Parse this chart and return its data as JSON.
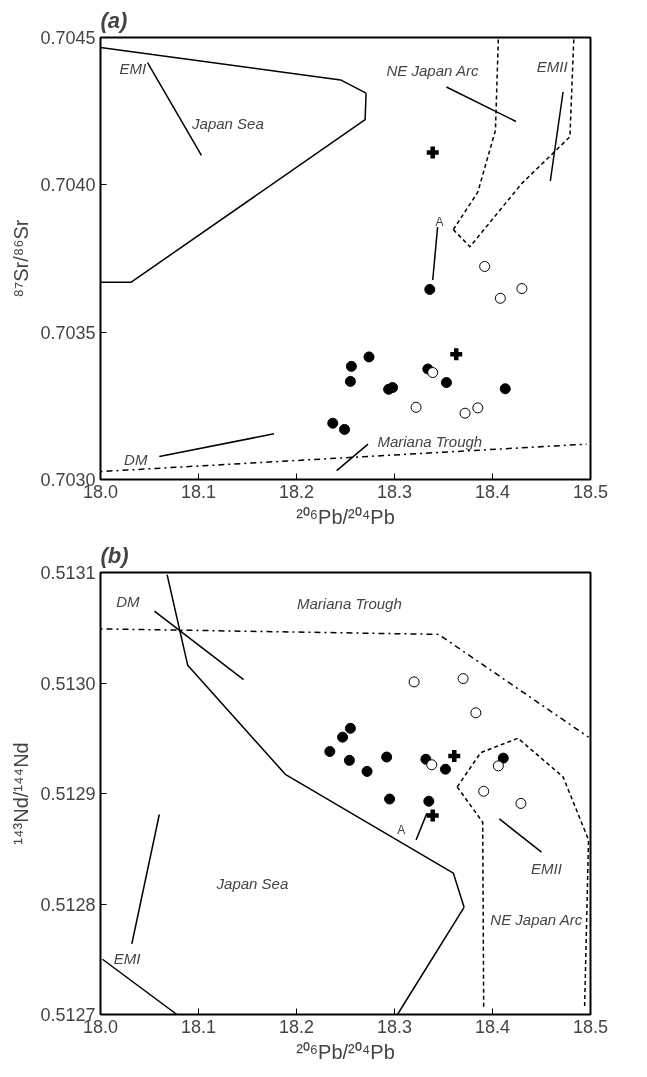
{
  "chart_data": [
    {
      "type": "scatter",
      "title": "(a)",
      "xlabel": "²⁰⁶Pb/²⁰⁴Pb",
      "ylabel": "⁸⁷Sr/⁸⁶Sr",
      "grid": false,
      "xlim": [
        18.0,
        18.5
      ],
      "ylim": [
        0.703,
        0.7045
      ],
      "xticks": [
        {
          "value": 18.0,
          "label": "18.0"
        },
        18.1,
        18.2,
        18.3,
        18.4,
        18.5
      ],
      "yticks": [
        {
          "value": 0.703,
          "label": "0.7030"
        },
        0.7035,
        {
          "value": 0.704,
          "label": "0.7040"
        },
        0.7045
      ],
      "series": [
        {
          "type": "line",
          "line_style": "solid",
          "color": "#000000",
          "x": [
            18.0,
            18.245,
            18.271
          ],
          "values": [
            0.704466,
            0.704356,
            0.704311
          ]
        },
        {
          "type": "line",
          "line_style": "solid",
          "color": "#000000",
          "x": [
            18.0,
            18.031,
            18.27,
            18.271
          ],
          "values": [
            0.703669,
            0.703669,
            0.704221,
            0.704311
          ]
        },
        {
          "type": "line",
          "line_style": "dashed",
          "color": "#000000",
          "x": [
            18.36,
            18.385,
            18.403,
            18.406
          ],
          "values": [
            0.703848,
            0.703975,
            0.704185,
            0.7045
          ]
        },
        {
          "type": "line",
          "line_style": "dashed",
          "color": "#000000",
          "x": [
            18.36,
            18.377,
            18.43,
            18.479,
            18.483
          ],
          "values": [
            0.703848,
            0.70379,
            0.704005,
            0.704163,
            0.7045
          ]
        },
        {
          "type": "line",
          "line_style": "dotdash",
          "color": "#000000",
          "x": [
            18.0,
            18.496
          ],
          "values": [
            0.703027,
            0.70312
          ]
        },
        {
          "type": "line",
          "line_style": "solid",
          "color": "#000000",
          "x": [
            18.339,
            18.344
          ],
          "values": [
            0.703677,
            0.703857
          ]
        },
        {
          "type": "line",
          "line_style": "solid",
          "color": "#000000",
          "x": [
            18.353,
            18.424
          ],
          "values": [
            0.704332,
            0.704215
          ]
        },
        {
          "type": "line",
          "line_style": "solid",
          "color": "#000000",
          "x": [
            18.241,
            18.273
          ],
          "values": [
            0.70303,
            0.70312
          ]
        },
        {
          "type": "line",
          "line_style": "solid",
          "color": "#000000",
          "x": [
            18.048,
            18.103
          ],
          "values": [
            0.704415,
            0.7041
          ]
        },
        {
          "type": "line",
          "line_style": "solid",
          "color": "#000000",
          "x": [
            18.06,
            18.177
          ],
          "values": [
            0.703078,
            0.703155
          ]
        },
        {
          "type": "line",
          "line_style": "solid",
          "color": "#000000",
          "x": [
            18.459,
            18.472
          ],
          "values": [
            0.704013,
            0.704315
          ]
        },
        {
          "marker": "circle",
          "color": "#000000",
          "x": [
            18.336,
            18.256,
            18.255,
            18.274,
            18.294,
            18.298,
            18.334,
            18.353,
            18.413,
            18.237,
            18.249
          ],
          "values": [
            0.703645,
            0.703384,
            0.703333,
            0.703416,
            0.703306,
            0.703312,
            0.703375,
            0.703329,
            0.703308,
            0.703191,
            0.70317
          ]
        },
        {
          "marker": "circle",
          "color": "#ffffff",
          "x": [
            18.392,
            18.408,
            18.43,
            18.339,
            18.322,
            18.372,
            18.385
          ],
          "values": [
            0.703723,
            0.703615,
            0.703648,
            0.703363,
            0.703245,
            0.703225,
            0.703243
          ]
        },
        {
          "marker": "cross",
          "color": "#000000",
          "x": [
            18.339,
            18.363
          ],
          "values": [
            0.70411,
            0.703425
          ]
        }
      ],
      "annotations": [
        "EMI",
        "Japan Sea",
        "NE Japan Arc",
        "EMII",
        "A",
        "DM",
        "Mariana Trough"
      ]
    },
    {
      "type": "scatter",
      "title": "(b)",
      "xlabel": "²⁰⁶Pb/²⁰⁴Pb",
      "ylabel": "¹⁴³Nd/¹⁴⁴Nd",
      "grid": false,
      "xlim": [
        18.0,
        18.5
      ],
      "ylim": [
        0.5127,
        0.5131
      ],
      "xticks": [
        {
          "value": 18.0,
          "label": "18.0"
        },
        18.1,
        18.2,
        18.3,
        18.4,
        18.5
      ],
      "yticks": [
        0.5127,
        0.5128,
        0.5129,
        {
          "value": 0.513,
          "label": "0.5130"
        },
        0.5131
      ],
      "series": [
        {
          "type": "line",
          "line_style": "solid",
          "color": "#000000",
          "x": [
            18.068,
            18.089,
            18.189,
            18.36,
            18.371
          ],
          "values": [
            0.513098,
            0.513016,
            0.512917,
            0.512828,
            0.512797
          ]
        },
        {
          "type": "line",
          "line_style": "solid",
          "color": "#000000",
          "x": [
            18.303,
            18.371
          ],
          "values": [
            0.5127,
            0.512797
          ]
        },
        {
          "type": "line",
          "line_style": "solid",
          "color": "#000000",
          "x": [
            18.002,
            18.078
          ],
          "values": [
            0.51275,
            0.5127
          ]
        },
        {
          "type": "line",
          "line_style": "dotdash",
          "color": "#000000",
          "x": [
            18.0,
            18.345,
            18.498
          ],
          "values": [
            0.513049,
            0.513044,
            0.512951
          ]
        },
        {
          "type": "line",
          "line_style": "dashed",
          "color": "#000000",
          "x": [
            18.364,
            18.39,
            18.391
          ],
          "values": [
            0.512906,
            0.512874,
            0.512707
          ]
        },
        {
          "type": "line",
          "line_style": "dashed",
          "color": "#000000",
          "x": [
            18.364,
            18.388,
            18.426,
            18.472,
            18.498,
            18.494
          ],
          "values": [
            0.512906,
            0.512937,
            0.51295,
            0.512915,
            0.512858,
            0.512707
          ]
        },
        {
          "type": "line",
          "line_style": "solid",
          "color": "#000000",
          "x": [
            18.322,
            18.333
          ],
          "values": [
            0.512858,
            0.512882
          ]
        },
        {
          "type": "line",
          "line_style": "solid",
          "color": "#000000",
          "x": [
            18.055,
            18.146
          ],
          "values": [
            0.513065,
            0.513003
          ]
        },
        {
          "type": "line",
          "line_style": "solid",
          "color": "#000000",
          "x": [
            18.032,
            18.06
          ],
          "values": [
            0.512764,
            0.512881
          ]
        },
        {
          "type": "line",
          "line_style": "solid",
          "color": "#000000",
          "x": [
            18.407,
            18.45
          ],
          "values": [
            0.512877,
            0.512847
          ]
        },
        {
          "marker": "circle",
          "color": "#000000",
          "x": [
            18.234,
            18.247,
            18.255,
            18.254,
            18.272,
            18.292,
            18.295,
            18.332,
            18.335,
            18.352,
            18.411
          ],
          "values": [
            0.512938,
            0.512951,
            0.512959,
            0.51293,
            0.51292,
            0.512933,
            0.512895,
            0.512931,
            0.512893,
            0.512922,
            0.512932
          ]
        },
        {
          "marker": "circle",
          "color": "#ffffff",
          "x": [
            18.32,
            18.37,
            18.383,
            18.338,
            18.406,
            18.391,
            18.429
          ],
          "values": [
            0.513001,
            0.513004,
            0.512973,
            0.512926,
            0.512925,
            0.512902,
            0.512891
          ]
        },
        {
          "marker": "cross",
          "color": "#000000",
          "x": [
            18.361,
            18.339
          ],
          "values": [
            0.512934,
            0.51288
          ]
        }
      ],
      "annotations": [
        "DM",
        "Mariana Trough",
        "Japan Sea",
        "EMI",
        "EMII",
        "NE Japan Arc",
        "A"
      ]
    }
  ]
}
